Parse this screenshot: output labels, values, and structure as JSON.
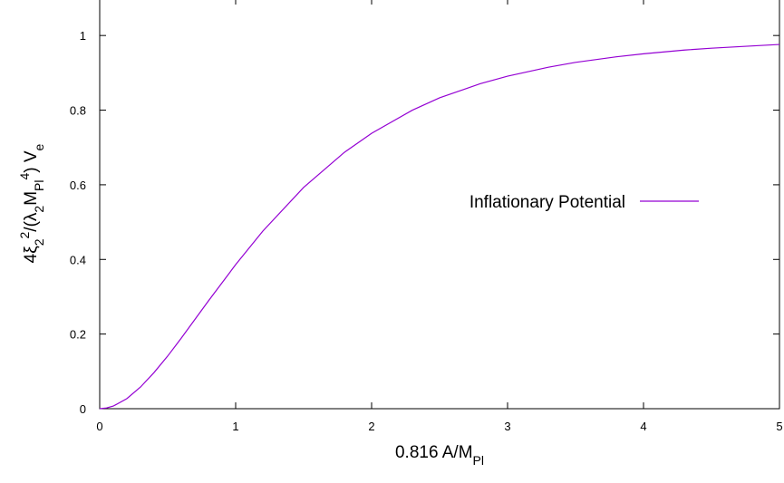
{
  "chart_data": {
    "type": "line",
    "title": "",
    "xlabel": {
      "main": "0.816 A/M",
      "sub": "Pl"
    },
    "ylabel": {
      "parts": [
        {
          "t": "4ξ",
          "s": "n"
        },
        {
          "t": "2",
          "s": "sub"
        },
        {
          "t": "2",
          "s": "sup"
        },
        {
          "t": "/(λ",
          "s": "n"
        },
        {
          "t": "2",
          "s": "sub"
        },
        {
          "t": "M",
          "s": "n"
        },
        {
          "t": "Pl",
          "s": "sub"
        },
        {
          "t": "4",
          "s": "sup"
        },
        {
          "t": ") V",
          "s": "n"
        },
        {
          "t": "e",
          "s": "sub"
        }
      ]
    },
    "xlim": [
      0,
      5
    ],
    "ylim": [
      0,
      1.1
    ],
    "x_ticks": [
      "0",
      "1",
      "2",
      "3",
      "4",
      "5"
    ],
    "y_ticks": [
      "0",
      "0.2",
      "0.4",
      "0.6",
      "0.8",
      "1"
    ],
    "grid": false,
    "legend_position": "right-middle",
    "series": [
      {
        "name": "Inflationary Potential",
        "color": "#9400d3",
        "x": [
          0,
          0.05,
          0.1,
          0.2,
          0.3,
          0.4,
          0.5,
          0.6,
          0.8,
          1.0,
          1.2,
          1.5,
          1.8,
          2.0,
          2.3,
          2.5,
          2.8,
          3.0,
          3.3,
          3.5,
          3.8,
          4.0,
          4.3,
          4.5,
          4.8,
          5.0
        ],
        "y": [
          0,
          0.002,
          0.007,
          0.027,
          0.058,
          0.097,
          0.141,
          0.189,
          0.289,
          0.386,
          0.476,
          0.593,
          0.687,
          0.738,
          0.8,
          0.833,
          0.871,
          0.891,
          0.915,
          0.928,
          0.943,
          0.951,
          0.961,
          0.966,
          0.972,
          0.976
        ]
      }
    ]
  }
}
